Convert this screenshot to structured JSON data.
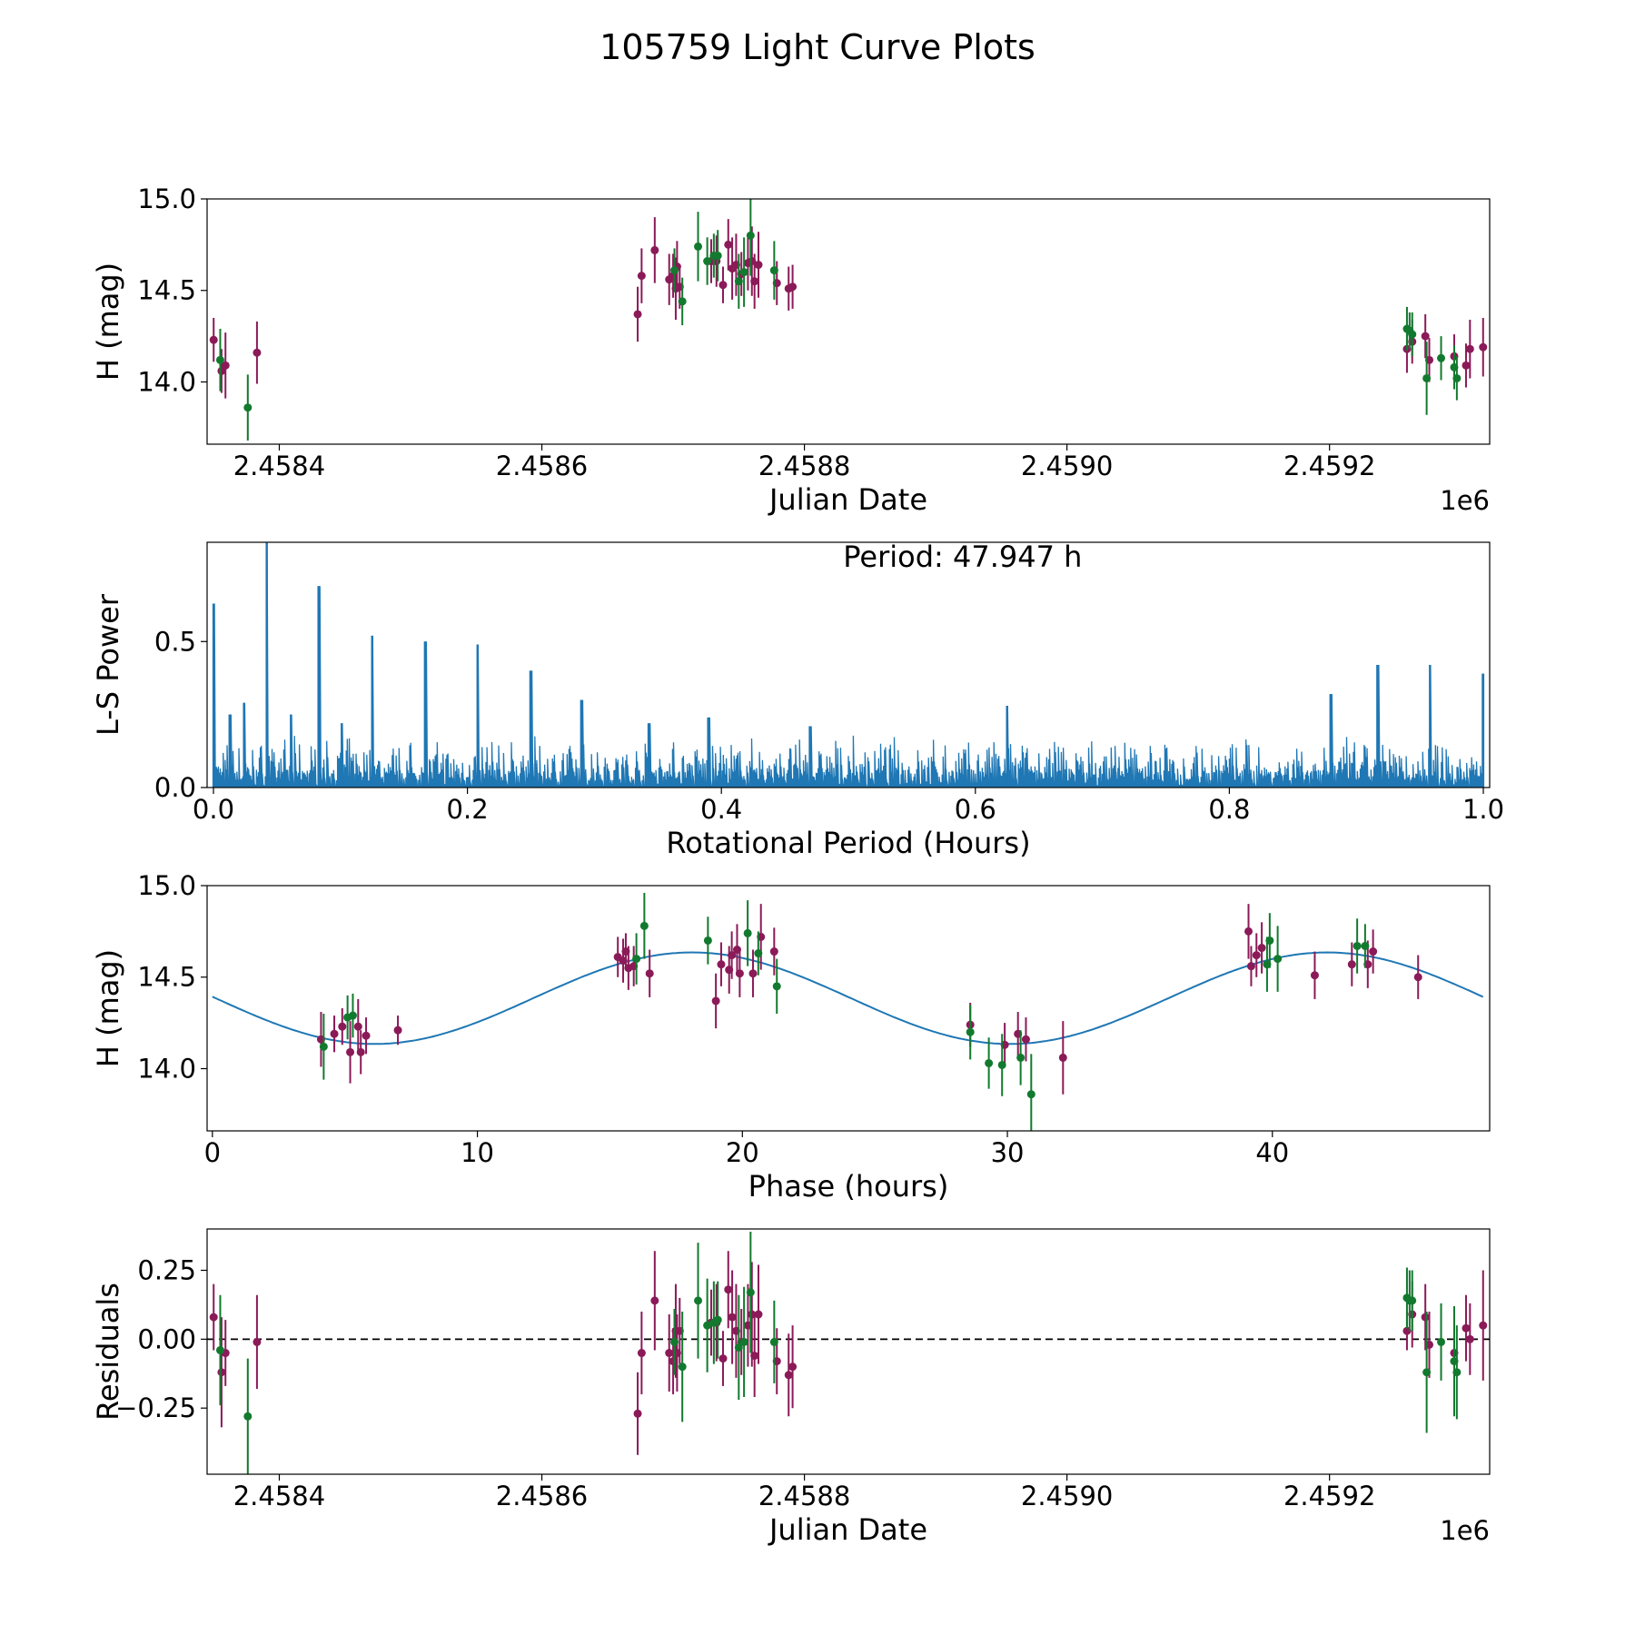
{
  "figure": {
    "title": "105759 Light Curve Plots",
    "colors": {
      "series_a": "#8b1a58",
      "series_b": "#127a2e",
      "spectrum": "#1f77b4",
      "fit": "#1f77b4",
      "zero_line": "#000000"
    }
  },
  "chart_data": [
    {
      "name": "light-curve",
      "type": "scatter",
      "xlabel": "Julian Date",
      "ylabel": "H (mag)",
      "x_offset_label": "1e6",
      "xlim": [
        2.458345,
        2.459322
      ],
      "ylim": [
        13.66,
        15.0
      ],
      "xticks": [
        2.4584,
        2.4586,
        2.4588,
        2.459,
        2.4592
      ],
      "xtick_labels": [
        "2.4584",
        "2.4586",
        "2.4588",
        "2.4590",
        "2.4592"
      ],
      "yticks": [
        14.0,
        14.5,
        15.0
      ],
      "ytick_labels": [
        "14.0",
        "14.5",
        "15.0"
      ],
      "series": [
        {
          "name": "series_a",
          "color": "#8b1a58",
          "points": [
            [
              2.45835,
              14.23,
              0.12
            ],
            [
              2.458356,
              14.06,
              0.12
            ],
            [
              2.458359,
              14.09,
              0.18
            ],
            [
              2.458383,
              14.16,
              0.17
            ],
            [
              2.458673,
              14.37,
              0.15
            ],
            [
              2.458676,
              14.58,
              0.15
            ],
            [
              2.458686,
              14.72,
              0.18
            ],
            [
              2.458697,
              14.56,
              0.14
            ],
            [
              2.4587,
              14.58,
              0.12
            ],
            [
              2.458702,
              14.51,
              0.17
            ],
            [
              2.458703,
              14.63,
              0.14
            ],
            [
              2.458705,
              14.52,
              0.12
            ],
            [
              2.458729,
              14.66,
              0.12
            ],
            [
              2.458733,
              14.66,
              0.14
            ],
            [
              2.458738,
              14.53,
              0.1
            ],
            [
              2.458742,
              14.75,
              0.14
            ],
            [
              2.458745,
              14.62,
              0.17
            ],
            [
              2.458748,
              14.64,
              0.17
            ],
            [
              2.458752,
              14.59,
              0.12
            ],
            [
              2.458757,
              14.65,
              0.15
            ],
            [
              2.45876,
              14.66,
              0.19
            ],
            [
              2.458762,
              14.55,
              0.15
            ],
            [
              2.458765,
              14.64,
              0.18
            ],
            [
              2.458779,
              14.54,
              0.12
            ],
            [
              2.458788,
              14.51,
              0.12
            ],
            [
              2.458791,
              14.52,
              0.12
            ],
            [
              2.459259,
              14.18,
              0.13
            ],
            [
              2.459263,
              14.22,
              0.12
            ],
            [
              2.459273,
              14.25,
              0.12
            ],
            [
              2.459276,
              14.12,
              0.12
            ],
            [
              2.459295,
              14.14,
              0.12
            ],
            [
              2.459304,
              14.09,
              0.12
            ],
            [
              2.459307,
              14.18,
              0.16
            ],
            [
              2.459317,
              14.19,
              0.16
            ]
          ]
        },
        {
          "name": "series_b",
          "color": "#127a2e",
          "points": [
            [
              2.458355,
              14.12,
              0.17
            ],
            [
              2.458376,
              13.86,
              0.18
            ],
            [
              2.458701,
              14.61,
              0.12
            ],
            [
              2.458707,
              14.44,
              0.13
            ],
            [
              2.458719,
              14.74,
              0.19
            ],
            [
              2.458726,
              14.66,
              0.13
            ],
            [
              2.458731,
              14.69,
              0.12
            ],
            [
              2.458734,
              14.69,
              0.14
            ],
            [
              2.45875,
              14.55,
              0.15
            ],
            [
              2.458754,
              14.6,
              0.19
            ],
            [
              2.458759,
              14.8,
              0.22
            ],
            [
              2.458777,
              14.61,
              0.16
            ],
            [
              2.459259,
              14.29,
              0.12
            ],
            [
              2.459261,
              14.28,
              0.1
            ],
            [
              2.459263,
              14.26,
              0.12
            ],
            [
              2.459274,
              14.02,
              0.2
            ],
            [
              2.459285,
              14.13,
              0.12
            ],
            [
              2.459295,
              14.08,
              0.12
            ],
            [
              2.459297,
              14.02,
              0.12
            ]
          ]
        }
      ]
    },
    {
      "name": "periodogram",
      "type": "line",
      "xlabel": "Rotational Period (Hours)",
      "ylabel": "L-S Power",
      "annotation": "Period: 47.947 h",
      "xlim": [
        -0.005,
        1.005
      ],
      "ylim": [
        0,
        0.84
      ],
      "xticks": [
        0,
        0.2,
        0.4,
        0.6,
        0.8,
        1.0
      ],
      "xtick_labels": [
        "0.0",
        "0.2",
        "0.4",
        "0.6",
        "0.8",
        "1.0"
      ],
      "yticks": [
        0,
        0.5
      ],
      "ytick_labels": [
        "0.0",
        "0.5"
      ],
      "baseline_level": 0.06,
      "noise_level": 0.12,
      "peaks": [
        [
          0.0,
          0.63
        ],
        [
          0.042,
          0.84
        ],
        [
          0.083,
          0.69
        ],
        [
          0.125,
          0.52
        ],
        [
          0.167,
          0.5
        ],
        [
          0.208,
          0.49
        ],
        [
          0.25,
          0.4
        ],
        [
          0.29,
          0.3
        ],
        [
          0.013,
          0.25
        ],
        [
          0.024,
          0.29
        ],
        [
          0.061,
          0.25
        ],
        [
          0.101,
          0.22
        ],
        [
          0.343,
          0.22
        ],
        [
          0.39,
          0.24
        ],
        [
          0.47,
          0.21
        ],
        [
          0.625,
          0.28
        ],
        [
          0.88,
          0.32
        ],
        [
          0.917,
          0.42
        ],
        [
          0.958,
          0.42
        ],
        [
          1.0,
          0.39
        ]
      ]
    },
    {
      "name": "phased-curve",
      "type": "scatter",
      "xlabel": "Phase (hours)",
      "ylabel": "H (mag)",
      "xlim": [
        -0.2,
        48.2
      ],
      "ylim": [
        13.66,
        15.0
      ],
      "xticks": [
        0,
        10,
        20,
        30,
        40
      ],
      "xtick_labels": [
        "0",
        "10",
        "20",
        "30",
        "40"
      ],
      "yticks": [
        14.0,
        14.5,
        15.0
      ],
      "ytick_labels": [
        "14.0",
        "14.5",
        "15.0"
      ],
      "fit": {
        "type": "sine",
        "mean": 14.385,
        "amplitude": 0.25,
        "period": 23.97,
        "peak_at": 18.1,
        "x_range": [
          0,
          47.95
        ]
      },
      "series": [
        {
          "name": "series_a",
          "color": "#8b1a58",
          "points": [
            [
              4.1,
              14.16,
              0.15
            ],
            [
              4.6,
              14.19,
              0.1
            ],
            [
              4.9,
              14.23,
              0.1
            ],
            [
              5.2,
              14.09,
              0.17
            ],
            [
              5.5,
              14.23,
              0.15
            ],
            [
              5.6,
              14.09,
              0.12
            ],
            [
              5.8,
              14.18,
              0.1
            ],
            [
              7.0,
              14.21,
              0.08
            ],
            [
              15.3,
              14.61,
              0.11
            ],
            [
              15.5,
              14.59,
              0.12
            ],
            [
              15.6,
              14.64,
              0.1
            ],
            [
              15.7,
              14.55,
              0.12
            ],
            [
              15.9,
              14.56,
              0.11
            ],
            [
              16.5,
              14.52,
              0.13
            ],
            [
              19.0,
              14.37,
              0.15
            ],
            [
              19.2,
              14.57,
              0.12
            ],
            [
              19.5,
              14.54,
              0.13
            ],
            [
              19.6,
              14.62,
              0.13
            ],
            [
              19.8,
              14.65,
              0.14
            ],
            [
              19.9,
              14.52,
              0.13
            ],
            [
              20.4,
              14.52,
              0.13
            ],
            [
              20.7,
              14.72,
              0.18
            ],
            [
              21.2,
              14.64,
              0.13
            ],
            [
              28.6,
              14.24,
              0.12
            ],
            [
              29.9,
              14.13,
              0.12
            ],
            [
              30.4,
              14.19,
              0.12
            ],
            [
              30.7,
              14.16,
              0.12
            ],
            [
              32.1,
              14.06,
              0.2
            ],
            [
              39.1,
              14.75,
              0.15
            ],
            [
              39.2,
              14.56,
              0.11
            ],
            [
              39.4,
              14.62,
              0.12
            ],
            [
              39.6,
              14.66,
              0.14
            ],
            [
              41.6,
              14.51,
              0.13
            ],
            [
              43.0,
              14.57,
              0.12
            ],
            [
              43.6,
              14.57,
              0.13
            ],
            [
              43.8,
              14.64,
              0.12
            ],
            [
              45.5,
              14.5,
              0.12
            ]
          ]
        },
        {
          "name": "series_b",
          "color": "#127a2e",
          "points": [
            [
              4.2,
              14.12,
              0.18
            ],
            [
              5.1,
              14.28,
              0.12
            ],
            [
              5.3,
              14.29,
              0.12
            ],
            [
              16.0,
              14.6,
              0.14
            ],
            [
              16.3,
              14.78,
              0.18
            ],
            [
              18.7,
              14.7,
              0.13
            ],
            [
              20.2,
              14.74,
              0.18
            ],
            [
              20.6,
              14.63,
              0.12
            ],
            [
              21.3,
              14.45,
              0.15
            ],
            [
              28.6,
              14.2,
              0.15
            ],
            [
              29.3,
              14.03,
              0.14
            ],
            [
              29.8,
              14.02,
              0.17
            ],
            [
              30.5,
              14.06,
              0.15
            ],
            [
              30.9,
              13.86,
              0.22
            ],
            [
              39.8,
              14.57,
              0.15
            ],
            [
              39.9,
              14.7,
              0.15
            ],
            [
              40.2,
              14.6,
              0.18
            ],
            [
              43.2,
              14.67,
              0.15
            ],
            [
              43.5,
              14.67,
              0.12
            ]
          ]
        }
      ]
    },
    {
      "name": "residuals",
      "type": "scatter",
      "xlabel": "Julian Date",
      "ylabel": "Residuals",
      "x_offset_label": "1e6",
      "xlim": [
        2.458345,
        2.459322
      ],
      "ylim": [
        -0.49,
        0.4
      ],
      "xticks": [
        2.4584,
        2.4586,
        2.4588,
        2.459,
        2.4592
      ],
      "xtick_labels": [
        "2.4584",
        "2.4586",
        "2.4588",
        "2.4590",
        "2.4592"
      ],
      "yticks": [
        -0.25,
        0.0,
        0.25
      ],
      "ytick_labels": [
        "−0.25",
        "0.00",
        "0.25"
      ],
      "reference_line": 0.0,
      "series": [
        {
          "name": "series_a",
          "color": "#8b1a58",
          "points": [
            [
              2.45835,
              0.08,
              0.12
            ],
            [
              2.458356,
              -0.12,
              0.2
            ],
            [
              2.458359,
              -0.05,
              0.12
            ],
            [
              2.458383,
              -0.01,
              0.17
            ],
            [
              2.458673,
              -0.27,
              0.15
            ],
            [
              2.458676,
              -0.05,
              0.15
            ],
            [
              2.458686,
              0.14,
              0.18
            ],
            [
              2.458697,
              -0.05,
              0.14
            ],
            [
              2.4587,
              -0.08,
              0.12
            ],
            [
              2.458702,
              0.03,
              0.17
            ],
            [
              2.458703,
              -0.05,
              0.14
            ],
            [
              2.458705,
              0.03,
              0.12
            ],
            [
              2.458729,
              0.06,
              0.12
            ],
            [
              2.458733,
              0.06,
              0.14
            ],
            [
              2.458738,
              -0.07,
              0.1
            ],
            [
              2.458742,
              0.18,
              0.14
            ],
            [
              2.458745,
              0.08,
              0.17
            ],
            [
              2.458748,
              0.03,
              0.17
            ],
            [
              2.458752,
              -0.01,
              0.12
            ],
            [
              2.458757,
              0.05,
              0.15
            ],
            [
              2.45876,
              0.09,
              0.19
            ],
            [
              2.458762,
              -0.06,
              0.15
            ],
            [
              2.458765,
              0.09,
              0.18
            ],
            [
              2.458779,
              -0.08,
              0.12
            ],
            [
              2.458788,
              -0.13,
              0.15
            ],
            [
              2.458791,
              -0.1,
              0.15
            ],
            [
              2.459259,
              0.03,
              0.07
            ],
            [
              2.459263,
              0.09,
              0.12
            ],
            [
              2.459273,
              0.08,
              0.12
            ],
            [
              2.459276,
              -0.02,
              0.12
            ],
            [
              2.459295,
              -0.05,
              0.12
            ],
            [
              2.459304,
              0.04,
              0.12
            ],
            [
              2.459307,
              0.0,
              0.13
            ],
            [
              2.459317,
              0.05,
              0.2
            ]
          ]
        },
        {
          "name": "series_b",
          "color": "#127a2e",
          "points": [
            [
              2.458355,
              -0.04,
              0.2
            ],
            [
              2.458376,
              -0.28,
              0.21
            ],
            [
              2.458701,
              -0.01,
              0.12
            ],
            [
              2.458707,
              -0.1,
              0.2
            ],
            [
              2.458719,
              0.14,
              0.21
            ],
            [
              2.458726,
              0.05,
              0.17
            ],
            [
              2.458731,
              0.06,
              0.15
            ],
            [
              2.458734,
              0.07,
              0.14
            ],
            [
              2.45875,
              -0.03,
              0.19
            ],
            [
              2.458754,
              -0.01,
              0.2
            ],
            [
              2.458759,
              0.17,
              0.22
            ],
            [
              2.458777,
              -0.01,
              0.15
            ],
            [
              2.459259,
              0.15,
              0.11
            ],
            [
              2.459261,
              0.14,
              0.11
            ],
            [
              2.459263,
              0.14,
              0.11
            ],
            [
              2.459274,
              -0.12,
              0.22
            ],
            [
              2.459285,
              -0.01,
              0.14
            ],
            [
              2.459295,
              -0.08,
              0.2
            ],
            [
              2.459297,
              -0.12,
              0.17
            ]
          ]
        }
      ]
    }
  ]
}
